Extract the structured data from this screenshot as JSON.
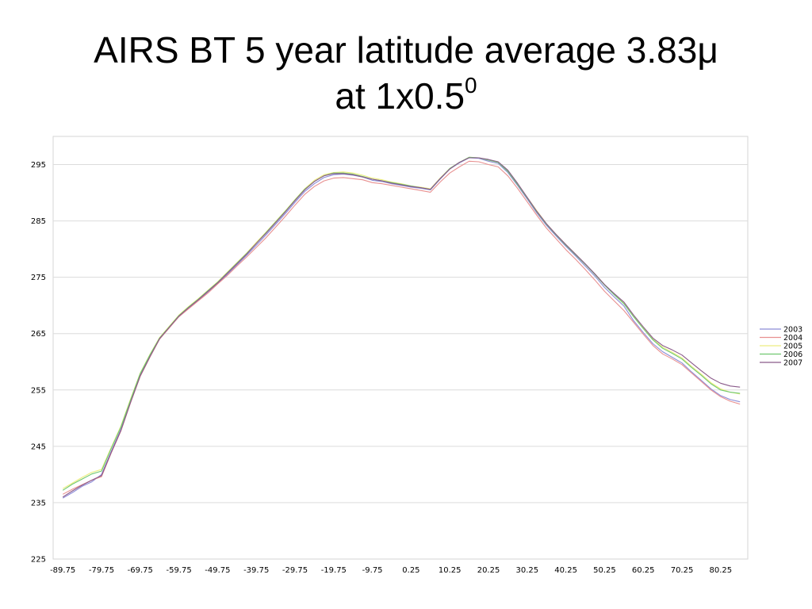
{
  "slide": {
    "title_line1": "AIRS BT 5 year latitude average 3.83μ",
    "title_line2": "at 1x0.5",
    "title_superscript": "0"
  },
  "chart_data": {
    "type": "line",
    "title": "",
    "xlabel": "",
    "ylabel": "",
    "ylim": [
      225,
      300
    ],
    "yticks": [
      225,
      235,
      245,
      255,
      265,
      275,
      285,
      295
    ],
    "xlim": [
      -92.25,
      87.25
    ],
    "xticks": [
      -89.75,
      -79.75,
      -69.75,
      -59.75,
      -49.75,
      -39.75,
      -29.75,
      -19.75,
      -9.75,
      0.25,
      10.25,
      20.25,
      30.25,
      40.25,
      50.25,
      60.25,
      70.25,
      80.25
    ],
    "xtick_labels": [
      "-89.75",
      "-79.75",
      "-69.75",
      "-59.75",
      "-49.75",
      "-39.75",
      "-29.75",
      "-19.75",
      "-9.75",
      "0.25",
      "10.25",
      "20.25",
      "30.25",
      "40.25",
      "50.25",
      "60.25",
      "70.25",
      "80.25"
    ],
    "grid": "horizontal",
    "legend_position": "right",
    "x": [
      -89.75,
      -87.25,
      -84.75,
      -82.25,
      -79.75,
      -77.25,
      -74.75,
      -72.25,
      -69.75,
      -67.25,
      -64.75,
      -62.25,
      -59.75,
      -57.25,
      -54.75,
      -52.25,
      -49.75,
      -47.25,
      -44.75,
      -42.25,
      -39.75,
      -37.25,
      -34.75,
      -32.25,
      -29.75,
      -27.25,
      -24.75,
      -22.25,
      -19.75,
      -17.25,
      -14.75,
      -12.25,
      -9.75,
      -7.25,
      -4.75,
      -2.25,
      0.25,
      2.75,
      5.25,
      7.75,
      10.25,
      12.75,
      15.25,
      17.75,
      20.25,
      22.75,
      25.25,
      27.75,
      30.25,
      32.75,
      35.25,
      37.75,
      40.25,
      42.75,
      45.25,
      47.75,
      50.25,
      52.75,
      55.25,
      57.75,
      60.25,
      62.75,
      65.25,
      67.75,
      70.25,
      72.75,
      75.25,
      77.75,
      80.25,
      82.75,
      85.25
    ],
    "series": [
      {
        "name": "2003",
        "color": "#8c8cd8",
        "values": [
          235.8,
          236.8,
          237.9,
          238.7,
          240.0,
          244.1,
          248.0,
          252.9,
          257.8,
          261.0,
          264.0,
          266.1,
          268.0,
          269.5,
          270.9,
          272.4,
          273.9,
          275.5,
          277.2,
          278.9,
          280.7,
          282.5,
          284.4,
          286.3,
          288.3,
          290.2,
          291.6,
          292.7,
          293.2,
          293.3,
          293.1,
          292.8,
          292.2,
          292.0,
          291.6,
          291.3,
          291.0,
          290.8,
          290.5,
          292.4,
          294.2,
          295.3,
          296.2,
          296.1,
          295.6,
          295.2,
          293.6,
          291.3,
          288.9,
          286.4,
          284.2,
          282.3,
          280.5,
          278.8,
          277.0,
          275.2,
          273.2,
          271.5,
          269.9,
          267.3,
          265.2,
          263.2,
          261.8,
          260.8,
          259.8,
          258.2,
          256.7,
          255.2,
          254.0,
          253.3,
          252.9
        ]
      },
      {
        "name": "2004",
        "color": "#e89090",
        "values": [
          236.5,
          237.4,
          238.2,
          239.0,
          239.6,
          243.8,
          247.7,
          252.7,
          257.4,
          260.8,
          264.0,
          266.0,
          268.0,
          269.4,
          270.8,
          272.2,
          273.8,
          275.3,
          277.0,
          278.6,
          280.3,
          282.0,
          283.9,
          285.8,
          287.8,
          289.7,
          291.1,
          292.1,
          292.6,
          292.7,
          292.5,
          292.3,
          291.8,
          291.6,
          291.3,
          291.0,
          290.7,
          290.4,
          290.1,
          291.9,
          293.5,
          294.6,
          295.6,
          295.5,
          295.0,
          294.6,
          293.0,
          290.8,
          288.4,
          286.0,
          283.7,
          281.8,
          279.9,
          278.2,
          276.4,
          274.5,
          272.5,
          270.8,
          269.1,
          267.0,
          264.9,
          262.9,
          261.4,
          260.5,
          259.5,
          258.0,
          256.5,
          255.0,
          253.8,
          253.0,
          252.5
        ]
      },
      {
        "name": "2005",
        "color": "#eeee80",
        "values": [
          237.5,
          238.5,
          239.5,
          240.4,
          240.9,
          244.8,
          248.6,
          253.4,
          258.0,
          261.3,
          264.3,
          266.3,
          268.3,
          269.8,
          271.2,
          272.7,
          274.2,
          275.9,
          277.6,
          279.3,
          281.2,
          283.0,
          284.9,
          286.8,
          288.8,
          290.7,
          292.2,
          293.2,
          293.6,
          293.7,
          293.5,
          293.1,
          292.6,
          292.3,
          291.9,
          291.6,
          291.2,
          291.0,
          290.7,
          292.6,
          294.3,
          295.4,
          296.3,
          296.2,
          295.8,
          295.4,
          293.9,
          291.6,
          289.2,
          286.8,
          284.5,
          282.6,
          280.8,
          279.1,
          277.3,
          275.6,
          273.7,
          272.0,
          270.4,
          268.1,
          266.0,
          264.0,
          262.6,
          261.7,
          260.7,
          259.2,
          257.8,
          256.3,
          255.2,
          254.6,
          254.3
        ]
      },
      {
        "name": "2006",
        "color": "#70c870",
        "values": [
          237.2,
          238.3,
          239.2,
          240.1,
          240.6,
          244.6,
          248.4,
          253.2,
          257.9,
          261.2,
          264.2,
          266.2,
          268.2,
          269.7,
          271.1,
          272.6,
          274.1,
          275.8,
          277.5,
          279.2,
          281.0,
          282.9,
          284.8,
          286.7,
          288.7,
          290.6,
          292.0,
          293.0,
          293.5,
          293.5,
          293.3,
          292.9,
          292.4,
          292.1,
          291.8,
          291.5,
          291.2,
          290.9,
          290.6,
          292.5,
          294.3,
          295.4,
          296.3,
          296.2,
          295.8,
          295.4,
          293.8,
          291.5,
          289.1,
          286.6,
          284.4,
          282.5,
          280.7,
          279.0,
          277.3,
          275.5,
          273.6,
          271.9,
          270.3,
          268.0,
          265.9,
          263.9,
          262.4,
          261.5,
          260.5,
          259.0,
          257.6,
          256.1,
          255.0,
          254.6,
          254.4
        ]
      },
      {
        "name": "2007",
        "color": "#8a5a8a",
        "values": [
          236.0,
          237.1,
          238.1,
          239.0,
          239.8,
          243.9,
          247.8,
          252.8,
          257.5,
          260.9,
          264.1,
          266.1,
          268.1,
          269.6,
          271.0,
          272.5,
          274.0,
          275.7,
          277.4,
          279.1,
          281.0,
          282.8,
          284.7,
          286.6,
          288.6,
          290.5,
          292.0,
          293.0,
          293.4,
          293.4,
          293.2,
          292.8,
          292.4,
          292.1,
          291.7,
          291.4,
          291.1,
          290.9,
          290.6,
          292.5,
          294.2,
          295.4,
          296.2,
          296.2,
          295.9,
          295.5,
          294.0,
          291.7,
          289.2,
          286.7,
          284.5,
          282.6,
          280.8,
          279.1,
          277.4,
          275.6,
          273.7,
          272.1,
          270.6,
          268.3,
          266.2,
          264.2,
          262.9,
          262.1,
          261.2,
          259.8,
          258.4,
          257.1,
          256.2,
          255.7,
          255.5
        ]
      }
    ]
  }
}
